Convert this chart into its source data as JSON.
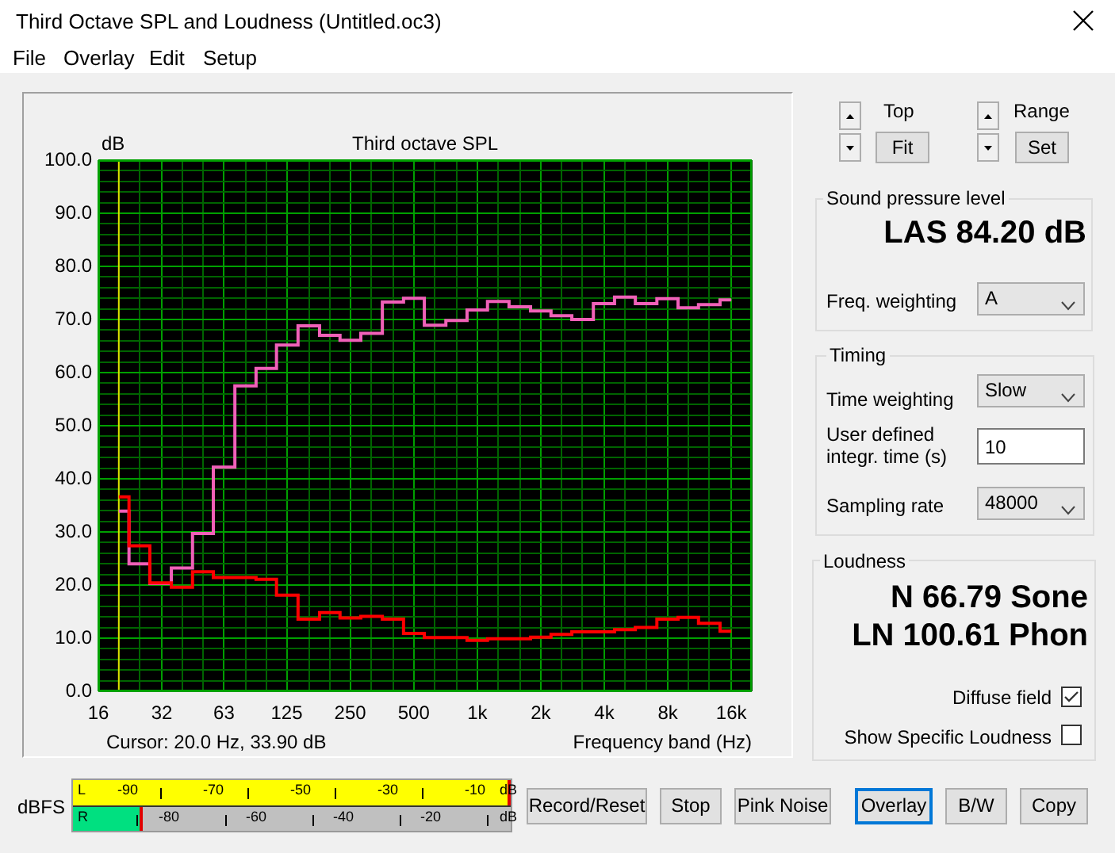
{
  "chart_data": {
    "type": "step",
    "title": "Third octave SPL",
    "xlabel": "Frequency band (Hz)",
    "ylabel": "dB",
    "x": [
      20,
      25,
      31.5,
      40,
      50,
      63,
      80,
      100,
      125,
      160,
      200,
      250,
      315,
      400,
      500,
      630,
      800,
      1000,
      1250,
      1600,
      2000,
      2500,
      3150,
      4000,
      5000,
      6300,
      8000,
      10000,
      12500,
      16000
    ],
    "series": [
      {
        "color": "#ff0000",
        "values": [
          36.6,
          27.4,
          20.4,
          19.6,
          22.5,
          21.4,
          21.4,
          21.1,
          18.1,
          13.6,
          14.8,
          13.8,
          14.1,
          13.6,
          10.9,
          10.1,
          10.1,
          9.6,
          9.9,
          9.9,
          10.2,
          10.7,
          11.2,
          11.2,
          11.6,
          12.0,
          13.6,
          13.9,
          12.8,
          11.3
        ]
      },
      {
        "color": "#f060b8",
        "values": [
          33.9,
          24.0,
          20.3,
          23.2,
          29.7,
          42.2,
          57.5,
          60.8,
          65.2,
          68.8,
          67.0,
          66.1,
          67.4,
          73.3,
          74.0,
          68.9,
          69.8,
          71.8,
          73.4,
          72.4,
          71.6,
          70.7,
          70.0,
          73.0,
          74.2,
          73.0,
          73.9,
          72.2,
          72.8,
          73.7
        ]
      }
    ],
    "log": "x",
    "xlim": [
      16,
      20000
    ],
    "xticks": [
      16,
      {
        "value": 20,
        "label": null
      },
      {
        "value": 25,
        "label": null
      },
      32,
      {
        "value": 40,
        "label": null
      },
      {
        "value": 50,
        "label": null
      },
      63,
      {
        "value": 80,
        "label": null
      },
      {
        "value": 100,
        "label": null
      },
      125,
      {
        "value": 160,
        "label": null
      },
      {
        "value": 200,
        "label": null
      },
      250,
      {
        "value": 315,
        "label": null
      },
      {
        "value": 400,
        "label": null
      },
      500,
      {
        "value": 630,
        "label": null
      },
      {
        "value": 800,
        "label": null
      },
      {
        "value": 1000,
        "label": "1k"
      },
      {
        "value": 1250,
        "label": null
      },
      {
        "value": 1600,
        "label": null
      },
      {
        "value": 2000,
        "label": "2k"
      },
      {
        "value": 2500,
        "label": null
      },
      {
        "value": 3150,
        "label": null
      },
      {
        "value": 4000,
        "label": "4k"
      },
      {
        "value": 5000,
        "label": null
      },
      {
        "value": 6300,
        "label": null
      },
      {
        "value": 8000,
        "label": "8k"
      },
      {
        "value": 10000,
        "label": null
      },
      {
        "value": 12500,
        "label": null
      },
      {
        "value": 16000,
        "label": "16k"
      },
      {
        "value": 20000,
        "label": null
      }
    ],
    "ylim": [
      0,
      100
    ],
    "yticks": [
      {
        "value": 0,
        "label": "0.0"
      },
      {
        "value": 2,
        "label": null
      },
      {
        "value": 4,
        "label": null
      },
      {
        "value": 6,
        "label": null
      },
      {
        "value": 8,
        "label": null
      },
      {
        "value": 10,
        "label": "10.0"
      },
      {
        "value": 12,
        "label": null
      },
      {
        "value": 14,
        "label": null
      },
      {
        "value": 16,
        "label": null
      },
      {
        "value": 18,
        "label": null
      },
      {
        "value": 20,
        "label": "20.0"
      },
      {
        "value": 22,
        "label": null
      },
      {
        "value": 24,
        "label": null
      },
      {
        "value": 26,
        "label": null
      },
      {
        "value": 28,
        "label": null
      },
      {
        "value": 30,
        "label": "30.0"
      },
      {
        "value": 32,
        "label": null
      },
      {
        "value": 34,
        "label": null
      },
      {
        "value": 36,
        "label": null
      },
      {
        "value": 38,
        "label": null
      },
      {
        "value": 40,
        "label": "40.0"
      },
      {
        "value": 42,
        "label": null
      },
      {
        "value": 44,
        "label": null
      },
      {
        "value": 46,
        "label": null
      },
      {
        "value": 48,
        "label": null
      },
      {
        "value": 50,
        "label": "50.0"
      },
      {
        "value": 52,
        "label": null
      },
      {
        "value": 54,
        "label": null
      },
      {
        "value": 56,
        "label": null
      },
      {
        "value": 58,
        "label": null
      },
      {
        "value": 60,
        "label": "60.0"
      },
      {
        "value": 62,
        "label": null
      },
      {
        "value": 64,
        "label": null
      },
      {
        "value": 66,
        "label": null
      },
      {
        "value": 68,
        "label": null
      },
      {
        "value": 70,
        "label": "70.0"
      },
      {
        "value": 72,
        "label": null
      },
      {
        "value": 74,
        "label": null
      },
      {
        "value": 76,
        "label": null
      },
      {
        "value": 78,
        "label": null
      },
      {
        "value": 80,
        "label": "80.0"
      },
      {
        "value": 82,
        "label": null
      },
      {
        "value": 84,
        "label": null
      },
      {
        "value": 86,
        "label": null
      },
      {
        "value": 88,
        "label": null
      },
      {
        "value": 90,
        "label": "90.0"
      },
      {
        "value": 92,
        "label": null
      },
      {
        "value": 94,
        "label": null
      },
      {
        "value": 96,
        "label": null
      },
      {
        "value": 98,
        "label": null
      },
      {
        "value": 100,
        "label": "100.0"
      }
    ],
    "grid": true,
    "legend": false,
    "ref_lines": [
      {
        "axis": "x",
        "value": 20,
        "color": "#e0e000"
      }
    ],
    "annotations": [
      "Third Octave SPL and Loudness (Untitled.oc3)",
      "File",
      "Overlay",
      "Edit",
      "Setup",
      "Cursor:  20.0 Hz, 33.90 dB",
      "Top",
      "Fit",
      "Range",
      "Set",
      "Sound pressure level",
      "LAS 84.20 dB",
      "Freq. weighting",
      "A",
      "Timing",
      "Time weighting",
      "Slow",
      "User defined integr. time (s)",
      "10",
      "Sampling rate",
      "48000",
      "Loudness",
      "N 66.79 Sone",
      "LN 100.61 Phon",
      "Diffuse field",
      "Show Specific Loudness",
      "dBFS",
      "Record/Reset",
      "Stop",
      "Pink Noise",
      "Overlay",
      "B/W",
      "Copy",
      "L",
      "-90",
      "-70",
      "-50",
      "-30",
      "-10",
      "dB",
      "R",
      "-80",
      "-60",
      "-40",
      "-20",
      "dB"
    ]
  }
}
